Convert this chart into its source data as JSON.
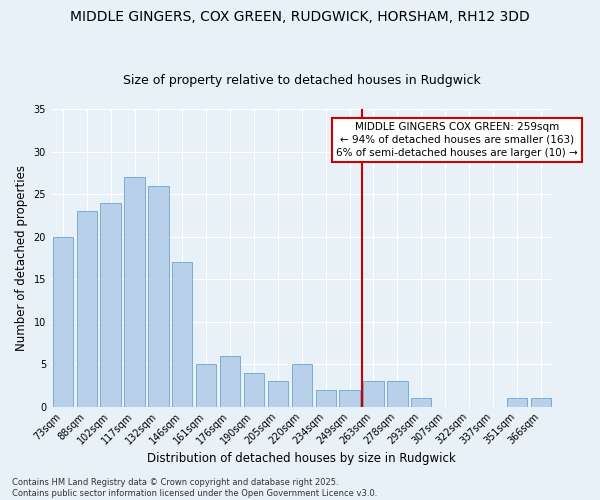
{
  "title_line1": "MIDDLE GINGERS, COX GREEN, RUDGWICK, HORSHAM, RH12 3DD",
  "title_line2": "Size of property relative to detached houses in Rudgwick",
  "xlabel": "Distribution of detached houses by size in Rudgwick",
  "ylabel": "Number of detached properties",
  "categories": [
    "73sqm",
    "88sqm",
    "102sqm",
    "117sqm",
    "132sqm",
    "146sqm",
    "161sqm",
    "176sqm",
    "190sqm",
    "205sqm",
    "220sqm",
    "234sqm",
    "249sqm",
    "263sqm",
    "278sqm",
    "293sqm",
    "307sqm",
    "322sqm",
    "337sqm",
    "351sqm",
    "366sqm"
  ],
  "values": [
    20,
    23,
    24,
    27,
    26,
    17,
    5,
    6,
    4,
    3,
    5,
    2,
    2,
    3,
    3,
    1,
    0,
    0,
    0,
    1,
    1
  ],
  "bar_color": "#b8d0ea",
  "bar_edge_color": "#7aadd4",
  "vline_x_idx": 13,
  "vline_color": "#cc0000",
  "annotation_text": "MIDDLE GINGERS COX GREEN: 259sqm\n← 94% of detached houses are smaller (163)\n6% of semi-detached houses are larger (10) →",
  "annotation_box_color": "#ffffff",
  "annotation_box_edge": "#cc0000",
  "ylim": [
    0,
    35
  ],
  "yticks": [
    0,
    5,
    10,
    15,
    20,
    25,
    30,
    35
  ],
  "footer": "Contains HM Land Registry data © Crown copyright and database right 2025.\nContains public sector information licensed under the Open Government Licence v3.0.",
  "bg_color": "#e8f0f8",
  "grid_color": "#ffffff",
  "title_fontsize": 10,
  "subtitle_fontsize": 9,
  "axis_label_fontsize": 8.5,
  "tick_fontsize": 7,
  "annotation_fontsize": 7.5,
  "footer_fontsize": 6
}
